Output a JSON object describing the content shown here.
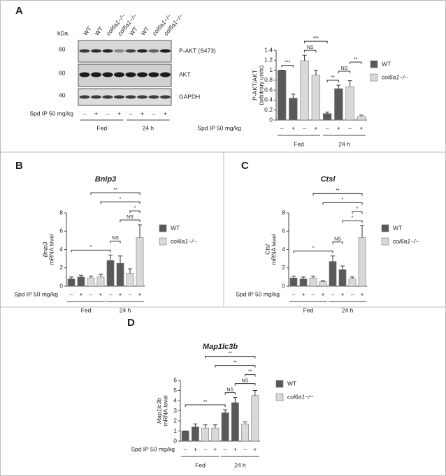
{
  "blot": {
    "kda": "kDa",
    "markers": [
      "60",
      "60",
      "40"
    ],
    "lanes": [
      "WT",
      "WT",
      "col6a1−/−",
      "col6a1−/−",
      "WT",
      "WT",
      "col6a1−/−",
      "col6a1−/−"
    ],
    "proteins": [
      "P-AKT (S473)",
      "AKT",
      "GAPDH"
    ],
    "row_label": "Spd IP 50 mg/kg",
    "signs": [
      "–",
      "+",
      "–",
      "+",
      "–",
      "+",
      "–",
      "+"
    ],
    "groups": [
      "Fed",
      "24 h"
    ]
  },
  "chart_data": [
    {
      "type": "bar",
      "panel": "A",
      "ylabel": [
        "P-AKT/AKT",
        "(arbitrary units)"
      ],
      "ylim": [
        0,
        1.4
      ],
      "yticks": [
        0,
        0.2,
        0.4,
        0.6,
        0.8,
        1,
        1.2,
        1.4
      ],
      "row_label": "Spd IP 50 mg/kg",
      "categories": [
        "–",
        "+",
        "–",
        "+",
        "–",
        "+",
        "–",
        "+"
      ],
      "groups": [
        "Fed",
        "24 h"
      ],
      "legend": "right",
      "series": [
        {
          "name": "WT",
          "color": "#595959",
          "values": [
            1.0,
            0.44,
            null,
            null,
            0.13,
            0.63,
            null,
            null
          ],
          "errors": [
            0,
            0.08,
            null,
            null,
            0.03,
            0.07,
            null,
            null
          ]
        },
        {
          "name": "col6a1−/−",
          "color": "#d9d9d9",
          "values": [
            null,
            null,
            1.19,
            0.9,
            null,
            null,
            0.67,
            0.07
          ],
          "errors": [
            null,
            null,
            0.11,
            0.1,
            null,
            null,
            0.12,
            0.03
          ]
        }
      ],
      "annotations": [
        {
          "text": "***",
          "from": 0,
          "to": 1
        },
        {
          "text": "NS",
          "from": 2,
          "to": 3
        },
        {
          "text": "**",
          "from": 4,
          "to": 5
        },
        {
          "text": "NS",
          "from": 5,
          "to": 6
        },
        {
          "text": "**",
          "from": 6,
          "to": 7
        },
        {
          "text": "***",
          "from": 2,
          "to": 4
        }
      ]
    },
    {
      "type": "bar",
      "panel": "B",
      "title": "Bnip3",
      "ylabel": [
        "Bnip3",
        "mRNA level"
      ],
      "ylim": [
        0,
        8
      ],
      "yticks": [
        0,
        2,
        4,
        6,
        8
      ],
      "row_label": "Spd IP 50 mg/kg",
      "categories": [
        "–",
        "+",
        "–",
        "+",
        "–",
        "+",
        "–",
        "+"
      ],
      "groups": [
        "Fed",
        "24 h"
      ],
      "legend": "right",
      "series": [
        {
          "name": "WT",
          "color": "#595959",
          "values": [
            0.8,
            1.0,
            null,
            null,
            2.8,
            2.5,
            null,
            null
          ],
          "errors": [
            0.2,
            0.2,
            null,
            null,
            0.6,
            0.8,
            null,
            null
          ]
        },
        {
          "name": "col6a1−/−",
          "color": "#d9d9d9",
          "values": [
            null,
            null,
            0.9,
            1.0,
            null,
            null,
            1.4,
            5.3
          ],
          "errors": [
            null,
            null,
            0.2,
            0.3,
            null,
            null,
            0.5,
            1.4
          ]
        }
      ],
      "annotations": [
        {
          "text": "*",
          "from": 0,
          "to": 4
        },
        {
          "text": "NS",
          "from": 4,
          "to": 5
        },
        {
          "text": "NS",
          "from": 5,
          "to": 7
        },
        {
          "text": "*",
          "from": 6,
          "to": 7
        },
        {
          "text": "*",
          "from": 3,
          "to": 7
        },
        {
          "text": "**",
          "from": 2,
          "to": 7
        }
      ]
    },
    {
      "type": "bar",
      "panel": "C",
      "title": "Ctsl",
      "ylabel": [
        "Ctsl",
        "mRNA level"
      ],
      "ylim": [
        0,
        8
      ],
      "yticks": [
        0,
        2,
        4,
        6,
        8
      ],
      "row_label": "Spd IP 50 mg/kg",
      "categories": [
        "–",
        "+",
        "–",
        "+",
        "–",
        "+",
        "–",
        "+"
      ],
      "groups": [
        "Fed",
        "24 h"
      ],
      "legend": "right",
      "series": [
        {
          "name": "WT",
          "color": "#595959",
          "values": [
            0.9,
            0.8,
            null,
            null,
            2.7,
            1.8,
            null,
            null
          ],
          "errors": [
            0.2,
            0.2,
            null,
            null,
            0.6,
            0.4,
            null,
            null
          ]
        },
        {
          "name": "col6a1−/−",
          "color": "#d9d9d9",
          "values": [
            null,
            null,
            0.9,
            0.5,
            null,
            null,
            0.8,
            5.3
          ],
          "errors": [
            null,
            null,
            0.2,
            0.1,
            null,
            null,
            0.2,
            1.3
          ]
        }
      ],
      "annotations": [
        {
          "text": "*",
          "from": 0,
          "to": 4
        },
        {
          "text": "NS",
          "from": 4,
          "to": 5
        },
        {
          "text": "*",
          "from": 5,
          "to": 7
        },
        {
          "text": "*",
          "from": 6,
          "to": 7
        },
        {
          "text": "*",
          "from": 3,
          "to": 7
        },
        {
          "text": "**",
          "from": 2,
          "to": 7
        }
      ]
    },
    {
      "type": "bar",
      "panel": "D",
      "title": "Map1lc3b",
      "ylabel": [
        "Map1lc3b",
        "mRNA level"
      ],
      "ylim": [
        0,
        6
      ],
      "yticks": [
        0,
        1,
        2,
        3,
        4,
        5,
        6
      ],
      "row_label": "Spd IP 50 mg/kg",
      "categories": [
        "–",
        "+",
        "–",
        "+",
        "–",
        "+",
        "–",
        "+"
      ],
      "groups": [
        "Fed",
        "24 h"
      ],
      "legend": "right",
      "series": [
        {
          "name": "WT",
          "color": "#595959",
          "values": [
            1.0,
            1.4,
            null,
            null,
            2.8,
            3.8,
            null,
            null
          ],
          "errors": [
            0,
            0.3,
            null,
            null,
            0.3,
            0.5,
            null,
            null
          ]
        },
        {
          "name": "col6a1−/−",
          "color": "#d9d9d9",
          "values": [
            null,
            null,
            1.3,
            1.3,
            null,
            null,
            1.7,
            4.5
          ],
          "errors": [
            null,
            null,
            0.3,
            0.3,
            null,
            null,
            0.2,
            0.5
          ]
        }
      ],
      "annotations": [
        {
          "text": "**",
          "from": 0,
          "to": 4
        },
        {
          "text": "NS",
          "from": 4,
          "to": 5
        },
        {
          "text": "NS",
          "from": 5,
          "to": 7
        },
        {
          "text": "**",
          "from": 6,
          "to": 7
        },
        {
          "text": "**",
          "from": 3,
          "to": 7
        },
        {
          "text": "**",
          "from": 2,
          "to": 7
        }
      ]
    }
  ]
}
